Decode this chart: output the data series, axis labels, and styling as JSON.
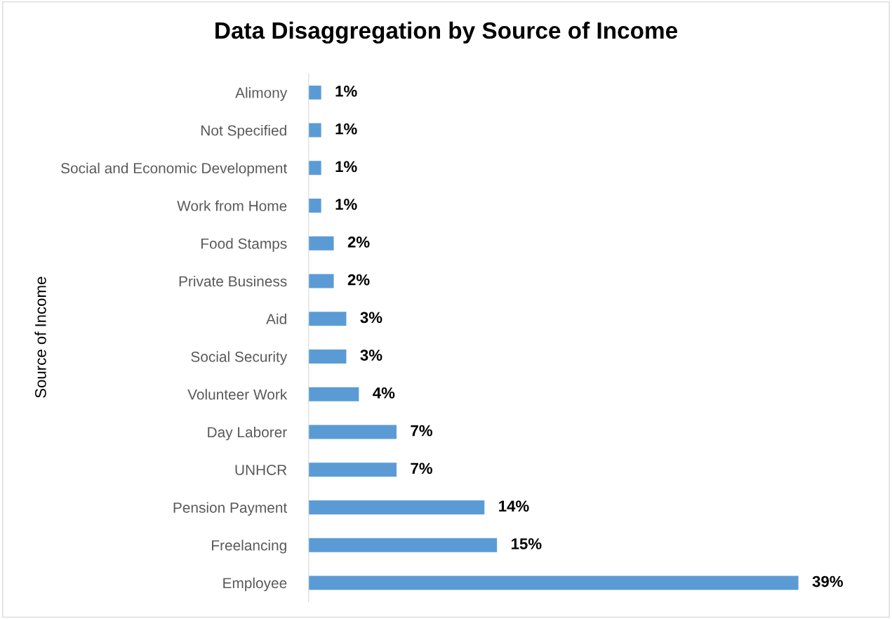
{
  "chart_data": {
    "type": "bar",
    "orientation": "horizontal",
    "title": "Data Disaggregation by Source of Income",
    "ylabel": "Source of Income",
    "categories": [
      "Alimony",
      "Not Specified",
      "Social and Economic Development",
      "Work from Home",
      "Food Stamps",
      "Private Business",
      "Aid",
      "Social Security",
      "Volunteer Work",
      "Day Laborer",
      "UNHCR",
      "Pension Payment",
      "Freelancing",
      "Employee"
    ],
    "values": [
      1,
      1,
      1,
      1,
      2,
      2,
      3,
      3,
      4,
      7,
      7,
      14,
      15,
      39
    ],
    "value_labels": [
      "1%",
      "1%",
      "1%",
      "1%",
      "2%",
      "2%",
      "3%",
      "3%",
      "4%",
      "7%",
      "7%",
      "14%",
      "15%",
      "39%"
    ],
    "color": "#5b9bd5",
    "grid": false,
    "legend": false
  }
}
